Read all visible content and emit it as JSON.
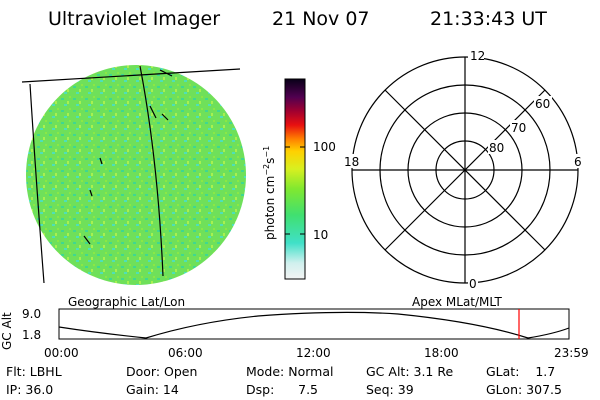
{
  "header": {
    "instrument": "Ultraviolet Imager",
    "date": "21 Nov 07",
    "time": "21:33:43 UT"
  },
  "colorbar": {
    "unit_main": "photon cm",
    "unit_sup1": "−2",
    "unit_mid": "s",
    "unit_sup2": "−1",
    "ticks": [
      "100",
      "10"
    ]
  },
  "polar_plot": {
    "mlt_labels": [
      "12",
      "18",
      "6",
      "0"
    ],
    "mlat_labels": [
      "60",
      "70",
      "80"
    ]
  },
  "panel_labels": {
    "left": "Geographic Lat/Lon",
    "right": "Apex MLat/MLT"
  },
  "altitude_plot": {
    "axis_label": "GC Alt",
    "ymax": "9.0",
    "ymin": "1.8",
    "time_ticks": [
      "00:00",
      "06:00",
      "12:00",
      "18:00",
      "23:59"
    ]
  },
  "info": {
    "filter": "Flt: LBHL",
    "door": "Door: Open",
    "mode": "Mode: Normal",
    "gc_alt": "GC Alt: 3.1 Re",
    "glat": "GLat:    1.7",
    "ip": "IP: 36.0",
    "gain": "Gain: 14",
    "dsp": "Dsp:      7.5",
    "seq": "Seq: 39",
    "glon": "GLon: 307.5"
  },
  "colors": {
    "disk_green": "#78e65a",
    "disk_cyan": "#50e6d2",
    "marker": "#ff0000"
  }
}
